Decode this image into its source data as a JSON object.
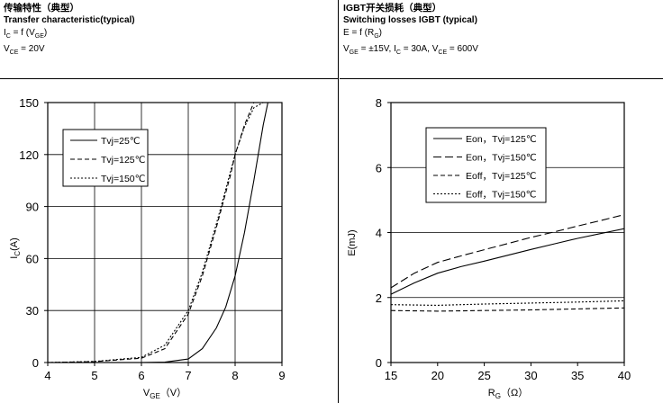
{
  "chart_data": [
    {
      "type": "line",
      "header": {
        "title_cn": "传输特性（典型）",
        "title_en": "Transfer characteristic(typical)",
        "line1_main": "I",
        "line1_sub": "C",
        "line1_mid": " = f (V",
        "line1_sub2": "GE",
        "line1_end": ")",
        "line2_main": "V",
        "line2_sub": "CE",
        "line2_end": " = 20V"
      },
      "xlabel_main": "V",
      "xlabel_sub": "GE",
      "xlabel_unit": "（V）",
      "ylabel_main": "I",
      "ylabel_sub": "C",
      "ylabel_unit": "(A)",
      "xlim": [
        4,
        9
      ],
      "ylim": [
        0,
        150
      ],
      "xticks": [
        "4",
        "5",
        "6",
        "7",
        "8",
        "9"
      ],
      "yticks": [
        "0",
        "30",
        "60",
        "90",
        "120",
        "150"
      ],
      "grid": true,
      "legend_position": "top-left",
      "series": [
        {
          "name": "Tvj=25℃",
          "style": "solid",
          "x": [
            4,
            5,
            6,
            6.5,
            7,
            7.3,
            7.6,
            7.8,
            8.0,
            8.2,
            8.4,
            8.6,
            8.7
          ],
          "y": [
            0,
            0,
            0,
            0.2,
            2,
            8,
            20,
            32,
            50,
            75,
            105,
            137,
            152
          ]
        },
        {
          "name": "Tvj=125℃",
          "style": "dashed",
          "x": [
            4,
            5,
            6,
            6.5,
            7,
            7.3,
            7.6,
            7.9,
            8.0,
            8.2,
            8.4,
            8.6
          ],
          "y": [
            0,
            0.5,
            2.5,
            8,
            28,
            50,
            78,
            108,
            120,
            137,
            150,
            160
          ]
        },
        {
          "name": "Tvj=150℃",
          "style": "dotted",
          "x": [
            4,
            5,
            6,
            6.5,
            7,
            7.3,
            7.6,
            7.9,
            8.0,
            8.2,
            8.4,
            8.6
          ],
          "y": [
            0,
            0.6,
            3,
            10,
            30,
            52,
            80,
            110,
            120,
            136,
            147,
            158
          ]
        }
      ]
    },
    {
      "type": "line",
      "header": {
        "title_cn": "IGBT开关损耗（典型）",
        "title_en": "Switching losses IGBT (typical)",
        "line1_main": "E = f (R",
        "line1_sub": "G",
        "line1_end": ")",
        "line2_a": "V",
        "line2_a_sub": "GE",
        "line2_b": " = ±15V,  I",
        "line2_b_sub": "C",
        "line2_c": " = 30A,  V",
        "line2_c_sub": "CE",
        "line2_end": " = 600V"
      },
      "xlabel_main": "R",
      "xlabel_sub": "G",
      "xlabel_unit": "（Ω）",
      "ylabel": "E(mJ)",
      "xlim": [
        15,
        40
      ],
      "ylim": [
        0,
        8
      ],
      "xticks": [
        "15",
        "20",
        "25",
        "30",
        "35",
        "40"
      ],
      "yticks": [
        "0",
        "2",
        "4",
        "6",
        "8"
      ],
      "grid": "horizontal",
      "legend_position": "top-center",
      "series": [
        {
          "name": "Eon，Tvj=125℃",
          "style": "solid",
          "x": [
            15,
            17.5,
            20,
            22.5,
            25,
            27.5,
            30,
            32.5,
            35,
            37.5,
            40
          ],
          "y": [
            2.1,
            2.45,
            2.75,
            2.95,
            3.12,
            3.3,
            3.48,
            3.65,
            3.82,
            3.97,
            4.12
          ]
        },
        {
          "name": "Eon，Tvj=150℃",
          "style": "longdash",
          "x": [
            15,
            17.5,
            20,
            22.5,
            25,
            27.5,
            30,
            32.5,
            35,
            37.5,
            40
          ],
          "y": [
            2.3,
            2.75,
            3.08,
            3.28,
            3.47,
            3.66,
            3.85,
            4.02,
            4.2,
            4.37,
            4.55
          ]
        },
        {
          "name": "Eoff，Tvj=125℃",
          "style": "dashed",
          "x": [
            15,
            20,
            25,
            30,
            35,
            40
          ],
          "y": [
            1.6,
            1.58,
            1.6,
            1.62,
            1.65,
            1.68
          ]
        },
        {
          "name": "Eoff，Tvj=150℃",
          "style": "dotted",
          "x": [
            15,
            20,
            25,
            30,
            35,
            40
          ],
          "y": [
            1.78,
            1.76,
            1.8,
            1.83,
            1.86,
            1.9
          ]
        }
      ]
    }
  ]
}
